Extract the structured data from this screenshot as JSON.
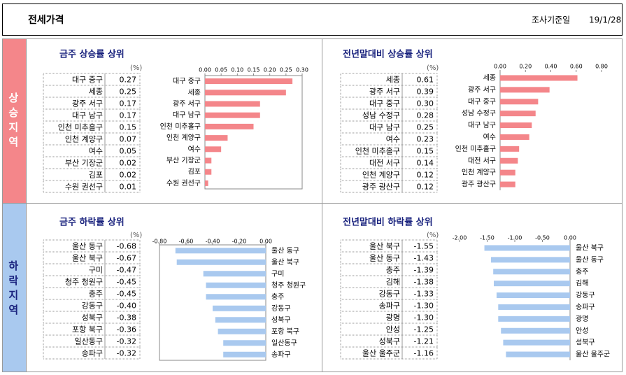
{
  "header": {
    "title": "전세가격",
    "date_label": "조사기준일",
    "date": "19/1/28"
  },
  "sections": [
    "상승지역",
    "하락지역"
  ],
  "chart_data": [
    {
      "type": "bar",
      "title": "금주 상승률 상위",
      "unit": "(%)",
      "color": "#f4868a",
      "categories": [
        "대구 중구",
        "세종",
        "광주 서구",
        "대구 남구",
        "인천 미추홀구",
        "인천 계양구",
        "여수",
        "부산 기장군",
        "김포",
        "수원 권선구"
      ],
      "values": [
        0.27,
        0.25,
        0.17,
        0.17,
        0.15,
        0.07,
        0.05,
        0.02,
        0.02,
        0.01
      ],
      "value_labels": [
        "0.27",
        "0.25",
        "0.17",
        "0.17",
        "0.15",
        "0.07",
        "0.05",
        "0.02",
        "0.02",
        "0.01"
      ],
      "xlim": [
        0,
        0.3
      ],
      "xticks": [
        {
          "value": 0,
          "label": "0.00"
        },
        {
          "value": 0.05,
          "label": "0.05"
        },
        {
          "value": 0.1,
          "label": "0.10"
        },
        {
          "value": 0.15,
          "label": "0.15"
        },
        {
          "value": 0.2,
          "label": "0.20"
        },
        {
          "value": 0.25,
          "label": "0.25"
        },
        {
          "value": 0.3,
          "label": "0.30"
        }
      ]
    },
    {
      "type": "bar",
      "title": "전년말대비 상승률 상위",
      "unit": "(%)",
      "color": "#f4868a",
      "categories": [
        "세종",
        "광주 서구",
        "대구 중구",
        "성남 수정구",
        "대구 남구",
        "여수",
        "인천 미추홀구",
        "대전 서구",
        "인천 계양구",
        "광주 광산구"
      ],
      "values": [
        0.61,
        0.39,
        0.3,
        0.28,
        0.25,
        0.23,
        0.15,
        0.14,
        0.12,
        0.12
      ],
      "value_labels": [
        "0.61",
        "0.39",
        "0.30",
        "0.28",
        "0.25",
        "0.23",
        "0.15",
        "0.14",
        "0.12",
        "0.12"
      ],
      "xlim": [
        0,
        0.8
      ],
      "xticks": [
        {
          "value": 0,
          "label": "0.00"
        },
        {
          "value": 0.2,
          "label": "0.20"
        },
        {
          "value": 0.4,
          "label": "0.40"
        },
        {
          "value": 0.6,
          "label": "0.60"
        },
        {
          "value": 0.8,
          "label": "0.80"
        }
      ]
    },
    {
      "type": "bar",
      "title": "금주 하락률 상위",
      "unit": "(%)",
      "color": "#a9c9ef",
      "categories": [
        "울산 동구",
        "울산 북구",
        "구미",
        "청주 청원구",
        "충주",
        "강동구",
        "성북구",
        "포항 북구",
        "일산동구",
        "송파구"
      ],
      "values": [
        -0.68,
        -0.67,
        -0.47,
        -0.45,
        -0.45,
        -0.4,
        -0.38,
        -0.36,
        -0.32,
        -0.32
      ],
      "value_labels": [
        "-0.68",
        "-0.67",
        "-0.47",
        "-0.45",
        "-0.45",
        "-0.40",
        "-0.38",
        "-0.36",
        "-0.32",
        "-0.32"
      ],
      "xlim": [
        -0.8,
        0
      ],
      "xticks": [
        {
          "value": -0.8,
          "label": "-0.80"
        },
        {
          "value": -0.6,
          "label": "-0.60"
        },
        {
          "value": -0.4,
          "label": "-0.40"
        },
        {
          "value": -0.2,
          "label": "-0.20"
        },
        {
          "value": 0,
          "label": "0.00"
        }
      ]
    },
    {
      "type": "bar",
      "title": "전년말대비 하락률 상위",
      "unit": "(%)",
      "color": "#a9c9ef",
      "categories": [
        "울산 북구",
        "울산 동구",
        "충주",
        "김해",
        "강동구",
        "송파구",
        "광명",
        "안성",
        "성북구",
        "울산 울주군"
      ],
      "values": [
        -1.55,
        -1.43,
        -1.39,
        -1.38,
        -1.33,
        -1.3,
        -1.3,
        -1.25,
        -1.21,
        -1.16
      ],
      "value_labels": [
        "-1.55",
        "-1.43",
        "-1.39",
        "-1.38",
        "-1.33",
        "-1.30",
        "-1.30",
        "-1.25",
        "-1.21",
        "-1.16"
      ],
      "xlim": [
        -2,
        0
      ],
      "xticks": [
        {
          "value": -2,
          "label": "-2.00"
        },
        {
          "value": -1.5,
          "label": "-1.50"
        },
        {
          "value": -1,
          "label": "-1.00"
        },
        {
          "value": -0.5,
          "label": "-0.50"
        },
        {
          "value": 0,
          "label": "0.00"
        }
      ]
    }
  ]
}
